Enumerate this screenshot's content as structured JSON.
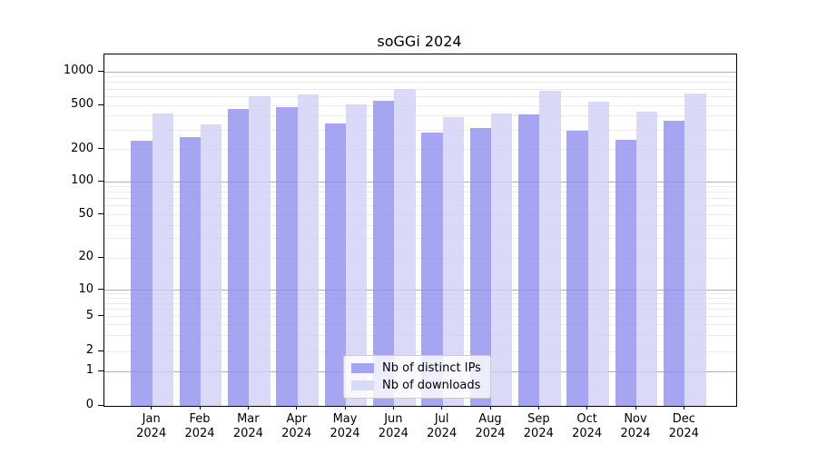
{
  "chart_data": {
    "type": "bar",
    "title": "soGGi 2024",
    "categories": [
      "Jan 2024",
      "Feb 2024",
      "Mar 2024",
      "Apr 2024",
      "May 2024",
      "Jun 2024",
      "Jul 2024",
      "Aug 2024",
      "Sep 2024",
      "Oct 2024",
      "Nov 2024",
      "Dec 2024"
    ],
    "series": [
      {
        "name": "Nb of distinct IPs",
        "color": "rgba(140,140,238,0.78)",
        "values": [
          240,
          260,
          465,
          480,
          345,
          550,
          285,
          310,
          415,
          295,
          245,
          365
        ]
      },
      {
        "name": "Nb of downloads",
        "color": "rgba(208,208,246,0.78)",
        "values": [
          420,
          335,
          600,
          625,
          510,
          705,
          390,
          420,
          670,
          540,
          440,
          640
        ]
      }
    ],
    "yscale": "symlog",
    "yticks": [
      0,
      1,
      2,
      5,
      10,
      20,
      50,
      100,
      200,
      500,
      1000
    ],
    "ylim": [
      0,
      1400
    ],
    "xlabel": "",
    "ylabel": "",
    "grid": true,
    "legend_position": "lower center",
    "colors": {
      "axis": "#000000",
      "major_grid": "#b0b0b0",
      "minor_grid": "#ececec",
      "background": "#ffffff"
    }
  }
}
